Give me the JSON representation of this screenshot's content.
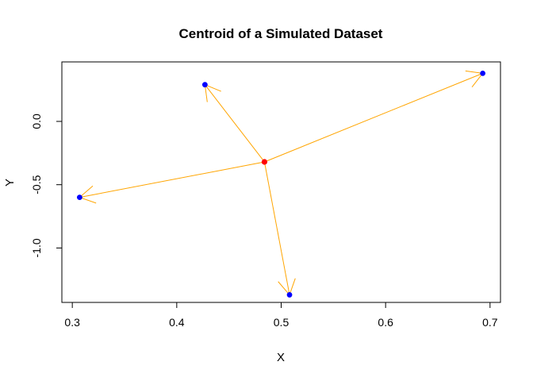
{
  "chart_data": {
    "type": "scatter",
    "title": "Centroid of a Simulated Dataset",
    "xlabel": "X",
    "ylabel": "Y",
    "xlim": [
      0.29,
      0.71
    ],
    "ylim": [
      -1.43,
      0.47
    ],
    "x_ticks": [
      0.3,
      0.4,
      0.5,
      0.6,
      0.7
    ],
    "x_tick_labels": [
      "0.3",
      "0.4",
      "0.5",
      "0.6",
      "0.7"
    ],
    "y_ticks": [
      -1.0,
      -0.5,
      0.0
    ],
    "y_tick_labels": [
      "-1.0",
      "-0.5",
      "0.0"
    ],
    "grid": false,
    "legend": "none",
    "centroid": {
      "x": 0.484,
      "y": -0.32
    },
    "points": [
      {
        "x": 0.427,
        "y": 0.29
      },
      {
        "x": 0.307,
        "y": -0.6
      },
      {
        "x": 0.693,
        "y": 0.38
      },
      {
        "x": 0.508,
        "y": -1.37
      }
    ],
    "colors": {
      "points": "#0000ff",
      "centroid": "#ff0000",
      "arrows": "#ffa500",
      "axes": "#000000"
    }
  }
}
